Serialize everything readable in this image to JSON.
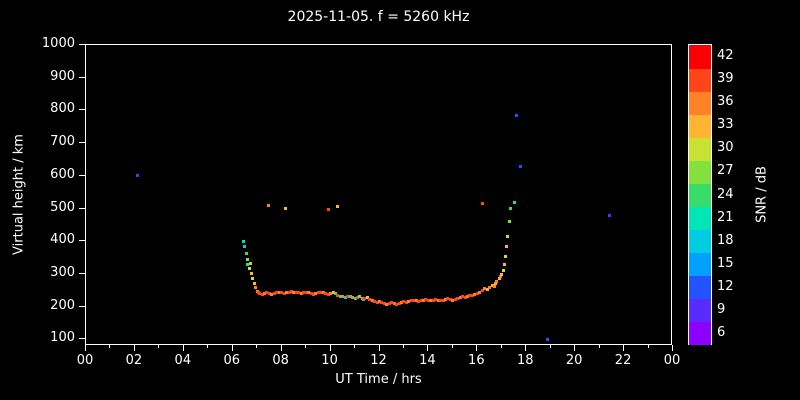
{
  "colorbar": {
    "label": "SNR / dB",
    "ticks": [
      6,
      9,
      12,
      15,
      18,
      21,
      24,
      27,
      30,
      33,
      36,
      39,
      42
    ],
    "stops": [
      {
        "v": 6,
        "color": "#8c00ff"
      },
      {
        "v": 9,
        "color": "#5a2bff"
      },
      {
        "v": 12,
        "color": "#2353ff"
      },
      {
        "v": 15,
        "color": "#00a0ff"
      },
      {
        "v": 18,
        "color": "#00cde1"
      },
      {
        "v": 21,
        "color": "#00e6b9"
      },
      {
        "v": 24,
        "color": "#37dc69"
      },
      {
        "v": 27,
        "color": "#82e13c"
      },
      {
        "v": 30,
        "color": "#c8e132"
      },
      {
        "v": 33,
        "color": "#ffb432"
      },
      {
        "v": 36,
        "color": "#ff8228"
      },
      {
        "v": 39,
        "color": "#ff4619"
      },
      {
        "v": 42,
        "color": "#fa0000"
      }
    ]
  },
  "chart_data": {
    "type": "scatter",
    "title": "2025-11-05. f = 5260 kHz",
    "xlabel": "UT Time / hrs",
    "ylabel": "Virtual height / km",
    "background": "#000000",
    "point_format": [
      "ut_hours",
      "virtual_height_km",
      "snr_db"
    ],
    "axes": {
      "x_range": [
        0,
        24
      ],
      "x_ticks": [
        {
          "v": 0,
          "label": "00"
        },
        {
          "v": 2,
          "label": "02"
        },
        {
          "v": 4,
          "label": "04"
        },
        {
          "v": 6,
          "label": "06"
        },
        {
          "v": 8,
          "label": "08"
        },
        {
          "v": 10,
          "label": "10"
        },
        {
          "v": 12,
          "label": "12"
        },
        {
          "v": 14,
          "label": "14"
        },
        {
          "v": 16,
          "label": "16"
        },
        {
          "v": 18,
          "label": "18"
        },
        {
          "v": 20,
          "label": "20"
        },
        {
          "v": 22,
          "label": "22"
        },
        {
          "v": 24,
          "label": "00"
        }
      ],
      "y_range": [
        80,
        1000
      ],
      "y_ticks": [
        100,
        200,
        300,
        400,
        500,
        600,
        700,
        800,
        900,
        1000
      ]
    },
    "points": [
      [
        2.1,
        600,
        12
      ],
      [
        7.45,
        510,
        36
      ],
      [
        8.15,
        500,
        33
      ],
      [
        10.3,
        505,
        33
      ],
      [
        16.2,
        515,
        39
      ],
      [
        17.5,
        520,
        21
      ],
      [
        17.6,
        783,
        12
      ],
      [
        17.75,
        630,
        12
      ],
      [
        18.85,
        100,
        12
      ],
      [
        21.4,
        478,
        9
      ],
      [
        6.45,
        400,
        21
      ],
      [
        6.5,
        383,
        18
      ],
      [
        6.55,
        362,
        24
      ],
      [
        6.6,
        345,
        27
      ],
      [
        6.62,
        330,
        21
      ],
      [
        6.67,
        318,
        30
      ],
      [
        6.72,
        332,
        33
      ],
      [
        6.77,
        302,
        33
      ],
      [
        6.82,
        286,
        30
      ],
      [
        6.87,
        270,
        33
      ],
      [
        6.92,
        258,
        36
      ],
      [
        7.0,
        248,
        36
      ],
      [
        7.05,
        243,
        39
      ],
      [
        7.1,
        240,
        39
      ],
      [
        7.2,
        238,
        39
      ],
      [
        7.3,
        240,
        36
      ],
      [
        7.4,
        242,
        39
      ],
      [
        7.5,
        240,
        39
      ],
      [
        7.6,
        238,
        36
      ],
      [
        7.7,
        240,
        39
      ],
      [
        7.8,
        243,
        39
      ],
      [
        7.9,
        245,
        36
      ],
      [
        8.0,
        243,
        39
      ],
      [
        8.1,
        240,
        39
      ],
      [
        8.2,
        242,
        36
      ],
      [
        8.3,
        245,
        39
      ],
      [
        8.4,
        247,
        39
      ],
      [
        8.5,
        245,
        36
      ],
      [
        8.6,
        243,
        39
      ],
      [
        8.7,
        242,
        39
      ],
      [
        8.8,
        240,
        36
      ],
      [
        8.9,
        242,
        39
      ],
      [
        9.0,
        245,
        39
      ],
      [
        9.1,
        243,
        36
      ],
      [
        9.2,
        240,
        39
      ],
      [
        9.3,
        238,
        39
      ],
      [
        9.4,
        240,
        36
      ],
      [
        9.5,
        243,
        39
      ],
      [
        9.6,
        245,
        39
      ],
      [
        9.7,
        243,
        36
      ],
      [
        9.8,
        240,
        39
      ],
      [
        9.9,
        238,
        39
      ],
      [
        9.9,
        497,
        39
      ],
      [
        10.0,
        240,
        36
      ],
      [
        10.1,
        245,
        33
      ],
      [
        10.2,
        240,
        24
      ],
      [
        10.3,
        235,
        39
      ],
      [
        10.4,
        232,
        21
      ],
      [
        10.5,
        230,
        36
      ],
      [
        10.6,
        228,
        18
      ],
      [
        10.7,
        230,
        39
      ],
      [
        10.8,
        232,
        24
      ],
      [
        10.9,
        228,
        36
      ],
      [
        11.0,
        225,
        21
      ],
      [
        11.1,
        228,
        39
      ],
      [
        11.2,
        230,
        27
      ],
      [
        11.3,
        226,
        36
      ],
      [
        11.35,
        222,
        18
      ],
      [
        11.4,
        225,
        39
      ],
      [
        11.5,
        228,
        33
      ],
      [
        11.6,
        222,
        39
      ],
      [
        11.7,
        218,
        36
      ],
      [
        11.8,
        215,
        39
      ],
      [
        11.9,
        212,
        39
      ],
      [
        12.0,
        215,
        36
      ],
      [
        12.1,
        212,
        39
      ],
      [
        12.2,
        210,
        39
      ],
      [
        12.3,
        208,
        36
      ],
      [
        12.4,
        210,
        39
      ],
      [
        12.5,
        212,
        39
      ],
      [
        12.6,
        210,
        36
      ],
      [
        12.7,
        208,
        39
      ],
      [
        12.8,
        210,
        39
      ],
      [
        12.9,
        213,
        36
      ],
      [
        13.0,
        215,
        39
      ],
      [
        13.1,
        213,
        39
      ],
      [
        13.2,
        215,
        36
      ],
      [
        13.3,
        218,
        39
      ],
      [
        13.4,
        220,
        39
      ],
      [
        13.5,
        218,
        36
      ],
      [
        13.6,
        215,
        39
      ],
      [
        13.7,
        218,
        39
      ],
      [
        13.8,
        220,
        36
      ],
      [
        13.9,
        222,
        39
      ],
      [
        14.0,
        220,
        39
      ],
      [
        14.1,
        218,
        36
      ],
      [
        14.2,
        220,
        39
      ],
      [
        14.3,
        222,
        39
      ],
      [
        14.4,
        220,
        36
      ],
      [
        14.5,
        218,
        39
      ],
      [
        14.6,
        220,
        39
      ],
      [
        14.7,
        222,
        36
      ],
      [
        14.8,
        225,
        39
      ],
      [
        14.9,
        223,
        39
      ],
      [
        15.0,
        220,
        36
      ],
      [
        15.1,
        222,
        39
      ],
      [
        15.2,
        225,
        39
      ],
      [
        15.3,
        228,
        36
      ],
      [
        15.4,
        230,
        39
      ],
      [
        15.5,
        228,
        39
      ],
      [
        15.6,
        230,
        36
      ],
      [
        15.7,
        233,
        39
      ],
      [
        15.8,
        235,
        39
      ],
      [
        15.9,
        238,
        36
      ],
      [
        16.0,
        240,
        39
      ],
      [
        16.1,
        245,
        36
      ],
      [
        16.2,
        250,
        39
      ],
      [
        16.3,
        255,
        36
      ],
      [
        16.4,
        252,
        33
      ],
      [
        16.5,
        258,
        36
      ],
      [
        16.6,
        265,
        33
      ],
      [
        16.7,
        262,
        36
      ],
      [
        16.75,
        270,
        33
      ],
      [
        16.8,
        278,
        36
      ],
      [
        16.9,
        285,
        33
      ],
      [
        16.95,
        292,
        36
      ],
      [
        17.0,
        300,
        33
      ],
      [
        17.05,
        310,
        30
      ],
      [
        17.1,
        330,
        33
      ],
      [
        17.15,
        355,
        30
      ],
      [
        17.2,
        385,
        33
      ],
      [
        17.25,
        415,
        30
      ],
      [
        17.3,
        460,
        27
      ],
      [
        17.35,
        500,
        24
      ]
    ]
  }
}
